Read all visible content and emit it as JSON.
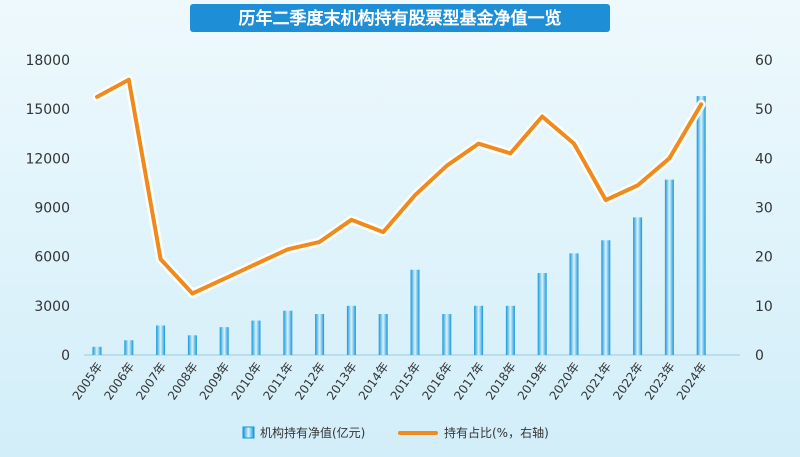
{
  "chart_data": {
    "type": "bar",
    "title": "历年二季度末机构持有股票型基金净值一览",
    "categories": [
      "2005年",
      "2006年",
      "2007年",
      "2008年",
      "2009年",
      "2010年",
      "2011年",
      "2012年",
      "2013年",
      "2014年",
      "2015年",
      "2016年",
      "2017年",
      "2018年",
      "2019年",
      "2020年",
      "2021年",
      "2022年",
      "2023年",
      "2024年"
    ],
    "series": [
      {
        "name": "机构持有净值(亿元)",
        "type": "bar",
        "axis": "left",
        "values": [
          500,
          900,
          1800,
          1200,
          1700,
          2100,
          2700,
          2500,
          3000,
          2500,
          5200,
          2500,
          3000,
          3000,
          5000,
          6200,
          7000,
          8400,
          10700,
          15800
        ]
      },
      {
        "name": "持有占比(%, 右轴)",
        "type": "line",
        "axis": "right",
        "values": [
          52.5,
          56,
          19.5,
          12.5,
          15.5,
          18.5,
          21.5,
          23,
          27.5,
          25,
          32.5,
          38.5,
          43,
          41,
          48.5,
          43,
          31.5,
          34.5,
          40,
          51
        ]
      }
    ],
    "legend": {
      "bar_label": "机构持有净值(亿元)",
      "line_label": "持有占比(%，右轴)",
      "placement": "bottom"
    },
    "y_left": {
      "ticks": [
        "18000",
        "15000",
        "12000",
        "9000",
        "6000",
        "3000",
        "0"
      ],
      "ylim": [
        0,
        18000
      ]
    },
    "y_right": {
      "ticks": [
        "60",
        "50",
        "40",
        "30",
        "20",
        "10",
        "0"
      ],
      "ylim": [
        0,
        60
      ]
    },
    "grid": false,
    "colors": {
      "bar": "#1aa0e0",
      "bar_light": "#d6f1fc",
      "line": "#f08a1c",
      "line_glow": "#ffffff",
      "title_bg": "#1e8fd6",
      "background": "#e3f4fb"
    }
  }
}
